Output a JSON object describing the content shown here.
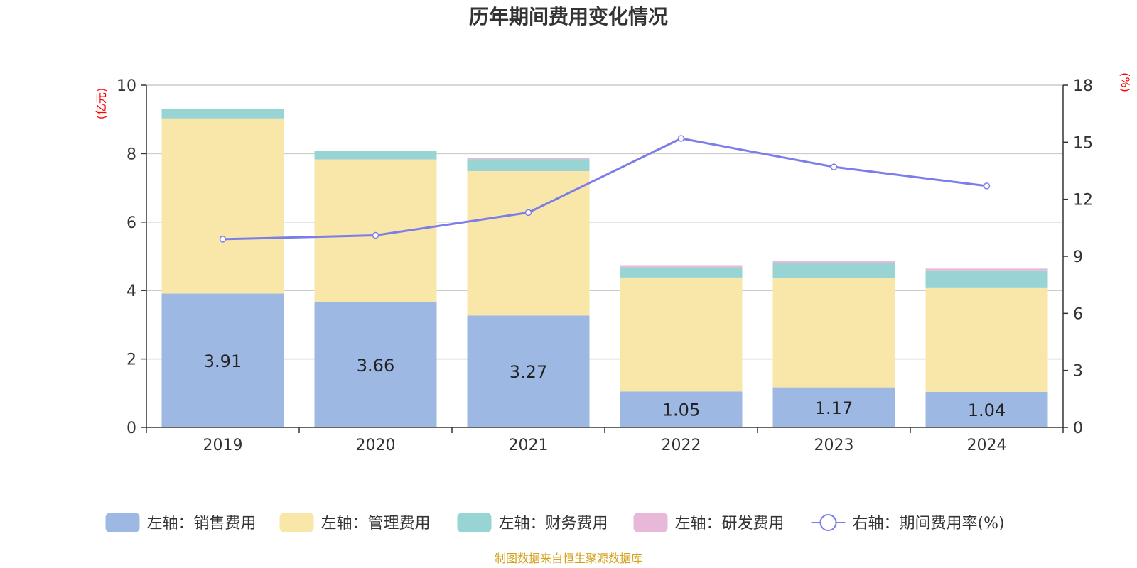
{
  "chart_data": {
    "type": "bar",
    "title": "历年期间费用变化情况",
    "categories": [
      "2019",
      "2020",
      "2021",
      "2022",
      "2023",
      "2024"
    ],
    "left_axis": {
      "unit": "(亿元)",
      "min": 0,
      "max": 10,
      "ticks": [
        "0",
        "2",
        "4",
        "6",
        "8",
        "10"
      ]
    },
    "right_axis": {
      "unit": "(%)",
      "min": 0,
      "max": 18,
      "ticks": [
        "0",
        "3",
        "6",
        "9",
        "12",
        "15",
        "18"
      ]
    },
    "grid": true,
    "legend_position": "bottom",
    "series": [
      {
        "name": "左轴：销售费用",
        "type": "bar",
        "stack": "fee",
        "color": "#9DB8E2",
        "values": [
          3.91,
          3.66,
          3.27,
          1.05,
          1.17,
          1.04
        ],
        "labels": [
          "3.91",
          "3.66",
          "3.27",
          "1.05",
          "1.17",
          "1.04"
        ]
      },
      {
        "name": "左轴：管理费用",
        "type": "bar",
        "stack": "fee",
        "color": "#F8E7A9",
        "values": [
          5.12,
          4.17,
          4.22,
          3.33,
          3.19,
          3.05
        ]
      },
      {
        "name": "左轴：财务费用",
        "type": "bar",
        "stack": "fee",
        "color": "#98D4D4",
        "values": [
          0.28,
          0.25,
          0.35,
          0.3,
          0.44,
          0.5
        ]
      },
      {
        "name": "左轴：研发费用",
        "type": "bar",
        "stack": "fee",
        "color": "#E8B8D8",
        "values": [
          0.0,
          0.0,
          0.03,
          0.06,
          0.06,
          0.05
        ]
      },
      {
        "name": "右轴：期间费用率(%)",
        "type": "line",
        "axis": "right",
        "color": "#7B7EE8",
        "values": [
          9.9,
          10.1,
          11.3,
          15.2,
          13.7,
          12.7
        ]
      }
    ],
    "source": "制图数据来自恒生聚源数据库"
  }
}
